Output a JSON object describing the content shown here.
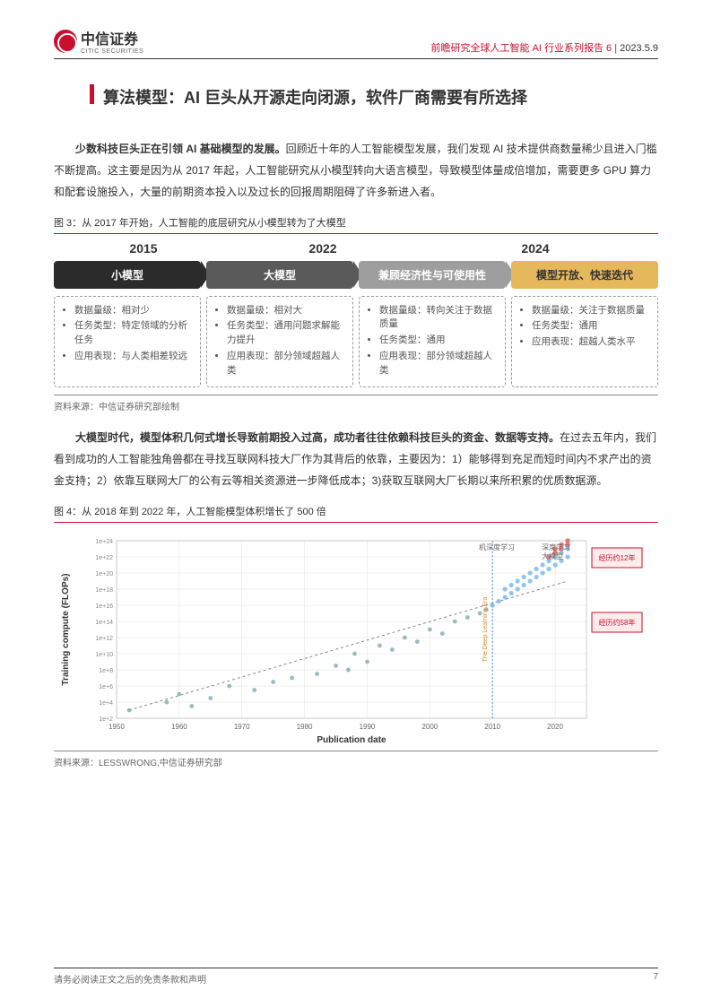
{
  "header": {
    "logo_text": "中信证券",
    "logo_sub": "CITIC SECURITIES",
    "series": "前瞻研究全球人工智能 AI 行业系列报告 6",
    "sep": " | ",
    "date": "2023.5.9"
  },
  "section_title": "算法模型：AI 巨头从开源走向闭源，软件厂商需要有所选择",
  "para1_bold": "少数科技巨头正在引领 AI 基础模型的发展。",
  "para1_rest": "回顾近十年的人工智能模型发展，我们发现 AI 技术提供商数量稀少且进入门槛不断提高。这主要是因为从 2017 年起，人工智能研究从小模型转向大语言模型，导致模型体量成倍增加，需要更多 GPU 算力和配套设施投入，大量的前期资本投入以及过长的回报周期阻碍了许多新进入者。",
  "fig3": {
    "title": "图 3：从 2017 年开始，人工智能的底层研究从小模型转为了大模型",
    "years": [
      "2015",
      "2022",
      "2024"
    ],
    "heads": [
      {
        "label": "小模型",
        "bg": "#2b2b2b"
      },
      {
        "label": "大模型",
        "bg": "#5a5a5a"
      },
      {
        "label": "兼顾经济性与可使用性",
        "bg": "#9e9e9e"
      },
      {
        "label": "模型开放、快速迭代",
        "bg": "#e6b85c"
      }
    ],
    "boxes": [
      [
        "数据量级：相对少",
        "任务类型：特定领域的分析任务",
        "应用表现：与人类相差较远"
      ],
      [
        "数据量级：相对大",
        "任务类型：通用问题求解能力提升",
        "应用表现：部分领域超越人类"
      ],
      [
        "数据量级：转向关注于数据质量",
        "任务类型：通用",
        "应用表现：部分领域超越人类"
      ],
      [
        "数据量级：关注于数据质量",
        "任务类型：通用",
        "应用表现：超越人类水平"
      ]
    ],
    "source": "资料来源：中信证券研究部绘制"
  },
  "para2_bold": "大模型时代，模型体积几何式增长导致前期投入过高，成功者往往依赖科技巨头的资金、数据等支持。",
  "para2_rest": "在过去五年内，我们看到成功的人工智能独角兽都在寻找互联网科技大厂作为其背后的依靠，主要因为：1）能够得到充足而短时间内不求产出的资金支持；2）依靠互联网大厂的公有云等相关资源进一步降低成本；3)获取互联网大厂长期以来所积累的优质数据源。",
  "fig4": {
    "title": "图 4：从 2018 年到 2022 年，人工智能模型体积增长了 500 倍",
    "ylabel": "Training compute (FLOPs)",
    "xlabel": "Publication date",
    "yticks": [
      "1e+2",
      "1e+4",
      "1e+6",
      "1e+8",
      "1e+10",
      "1e+12",
      "1e+14",
      "1e+16",
      "1e+18",
      "1e+20",
      "1e+22",
      "1e+24"
    ],
    "xticks": [
      "1950",
      "1960",
      "1970",
      "1980",
      "1990",
      "2000",
      "2010",
      "2020"
    ],
    "xlim": [
      1950,
      2025
    ],
    "ylim": [
      2,
      24
    ],
    "legend": {
      "top1": "机深度学习",
      "top2": "深度学习",
      "top3": "大模型"
    },
    "annot1": "经历约12年",
    "annot2": "经历约58年",
    "era_label": "The Deep Learning Era",
    "colors": {
      "early": "#7aa6a6",
      "deep": "#6fb1e6",
      "large": "#d9534f",
      "trend": "#888888",
      "box_border": "#c8102e",
      "box_fill": "#fcecec",
      "grid": "#e0e0e0"
    },
    "points_early": [
      [
        1952,
        3
      ],
      [
        1958,
        4
      ],
      [
        1960,
        5
      ],
      [
        1962,
        3.5
      ],
      [
        1965,
        4.5
      ],
      [
        1968,
        6
      ],
      [
        1972,
        5.5
      ],
      [
        1975,
        6.5
      ],
      [
        1978,
        7
      ],
      [
        1982,
        7.5
      ],
      [
        1985,
        8.5
      ],
      [
        1987,
        8
      ],
      [
        1988,
        10
      ],
      [
        1990,
        9
      ],
      [
        1992,
        11
      ],
      [
        1994,
        10.5
      ],
      [
        1996,
        12
      ],
      [
        1998,
        11.5
      ],
      [
        2000,
        13
      ],
      [
        2002,
        12.5
      ],
      [
        2004,
        14
      ],
      [
        2006,
        14.5
      ],
      [
        2008,
        15
      ],
      [
        2009,
        15.5
      ]
    ],
    "points_deep": [
      [
        2010,
        16
      ],
      [
        2011,
        16.5
      ],
      [
        2012,
        17
      ],
      [
        2012,
        18
      ],
      [
        2013,
        17.5
      ],
      [
        2013,
        18.5
      ],
      [
        2014,
        18
      ],
      [
        2014,
        19
      ],
      [
        2015,
        18.5
      ],
      [
        2015,
        19.5
      ],
      [
        2016,
        19
      ],
      [
        2016,
        20
      ],
      [
        2017,
        19.5
      ],
      [
        2017,
        20.5
      ],
      [
        2018,
        20
      ],
      [
        2018,
        21
      ],
      [
        2019,
        20.5
      ],
      [
        2019,
        21.5
      ],
      [
        2020,
        21
      ],
      [
        2020,
        22
      ],
      [
        2021,
        21.5
      ],
      [
        2021,
        22.5
      ],
      [
        2022,
        22
      ],
      [
        2022,
        23
      ]
    ],
    "points_large": [
      [
        2019,
        22
      ],
      [
        2020,
        22.5
      ],
      [
        2020,
        23
      ],
      [
        2021,
        23
      ],
      [
        2021,
        23.5
      ],
      [
        2022,
        23.5
      ],
      [
        2022,
        24
      ]
    ],
    "trend": [
      [
        1952,
        3
      ],
      [
        2022,
        19
      ]
    ],
    "source": "资料来源：LESSWRONG,中信证券研究部"
  },
  "footer": {
    "left": "请务必阅读正文之后的免责条款和声明",
    "page": "7"
  }
}
